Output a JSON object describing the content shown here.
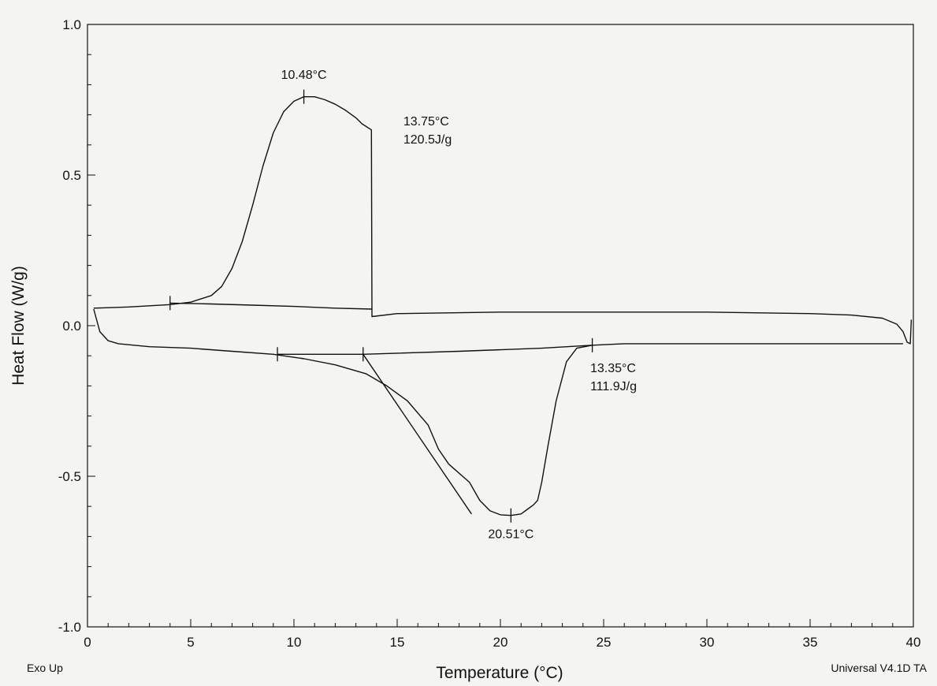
{
  "chart_data": {
    "type": "line",
    "xlabel": "Temperature (°C)",
    "ylabel": "Heat Flow (W/g)",
    "xlim": [
      0,
      40
    ],
    "ylim": [
      -1.0,
      1.0
    ],
    "x_ticks": [
      0,
      5,
      10,
      15,
      20,
      25,
      30,
      35,
      40
    ],
    "x_tick_labels": [
      "0",
      "5",
      "10",
      "15",
      "20",
      "25",
      "30",
      "35",
      "40"
    ],
    "y_ticks": [
      -1.0,
      -0.5,
      0.0,
      0.5,
      1.0
    ],
    "y_tick_labels": [
      "-1.0",
      "-0.5",
      "0.0",
      "0.5",
      "1.0"
    ],
    "x_minor_step": 1,
    "y_minor_step": 0.1,
    "grid": false,
    "series": [
      {
        "points": [
          [
            0.3,
            0.058
          ],
          [
            2,
            0.062
          ],
          [
            4,
            0.07
          ],
          [
            5,
            0.078
          ],
          [
            6,
            0.1
          ],
          [
            6.5,
            0.13
          ],
          [
            7,
            0.19
          ],
          [
            7.5,
            0.28
          ],
          [
            8,
            0.4
          ],
          [
            8.5,
            0.53
          ],
          [
            9,
            0.64
          ],
          [
            9.5,
            0.71
          ],
          [
            10,
            0.745
          ],
          [
            10.48,
            0.76
          ],
          [
            11,
            0.76
          ],
          [
            11.5,
            0.75
          ],
          [
            12,
            0.735
          ],
          [
            12.5,
            0.715
          ],
          [
            13,
            0.69
          ],
          [
            13.3,
            0.67
          ],
          [
            13.75,
            0.65
          ],
          [
            13.78,
            0.03
          ],
          [
            15,
            0.04
          ],
          [
            20,
            0.045
          ],
          [
            25,
            0.045
          ],
          [
            30,
            0.045
          ],
          [
            35,
            0.04
          ],
          [
            37,
            0.035
          ],
          [
            38.5,
            0.025
          ],
          [
            39.2,
            0.005
          ],
          [
            39.5,
            -0.02
          ],
          [
            39.7,
            -0.055
          ],
          [
            39.85,
            -0.06
          ],
          [
            39.9,
            0.02
          ]
        ]
      },
      {
        "points": [
          [
            0.3,
            0.055
          ],
          [
            0.6,
            -0.02
          ],
          [
            1,
            -0.05
          ],
          [
            1.5,
            -0.06
          ],
          [
            3,
            -0.07
          ],
          [
            5,
            -0.075
          ],
          [
            7,
            -0.085
          ],
          [
            9,
            -0.095
          ],
          [
            10.5,
            -0.11
          ],
          [
            12,
            -0.13
          ],
          [
            13.5,
            -0.16
          ],
          [
            14.5,
            -0.2
          ],
          [
            15.5,
            -0.25
          ],
          [
            16.5,
            -0.33
          ],
          [
            17,
            -0.41
          ],
          [
            17.5,
            -0.46
          ],
          [
            18.5,
            -0.52
          ],
          [
            19,
            -0.58
          ],
          [
            19.5,
            -0.615
          ],
          [
            20,
            -0.628
          ],
          [
            20.51,
            -0.63
          ],
          [
            21,
            -0.625
          ],
          [
            21.3,
            -0.61
          ],
          [
            21.6,
            -0.595
          ],
          [
            21.8,
            -0.58
          ],
          [
            22,
            -0.52
          ],
          [
            22.3,
            -0.4
          ],
          [
            22.7,
            -0.25
          ],
          [
            23.2,
            -0.12
          ],
          [
            23.7,
            -0.075
          ],
          [
            24.45,
            -0.065
          ],
          [
            26,
            -0.06
          ],
          [
            30,
            -0.06
          ],
          [
            35,
            -0.06
          ],
          [
            39.5,
            -0.06
          ]
        ]
      },
      {
        "points": [
          [
            4,
            0.075
          ],
          [
            6,
            0.072
          ],
          [
            8,
            0.068
          ],
          [
            10,
            0.064
          ],
          [
            12,
            0.058
          ],
          [
            13.78,
            0.055
          ]
        ]
      },
      {
        "points": [
          [
            9.2,
            -0.095
          ],
          [
            13.35,
            -0.095
          ],
          [
            18,
            -0.085
          ],
          [
            22,
            -0.075
          ],
          [
            24.45,
            -0.065
          ]
        ]
      },
      {
        "points": [
          [
            13.35,
            -0.095
          ],
          [
            18.6,
            -0.625
          ]
        ]
      }
    ],
    "markers": [
      {
        "x": 4,
        "y": 0.075
      },
      {
        "x": 10.48,
        "y": 0.76
      },
      {
        "x": 9.2,
        "y": -0.095
      },
      {
        "x": 13.35,
        "y": -0.095
      },
      {
        "x": 24.45,
        "y": -0.065
      },
      {
        "x": 20.51,
        "y": -0.63
      }
    ],
    "annotations": [
      {
        "text": "10.48°C",
        "x": 10.48,
        "y": 0.82
      },
      {
        "text": "13.75°C",
        "x": 15.3,
        "y": 0.665
      },
      {
        "text": "120.5J/g",
        "x": 15.3,
        "y": 0.605
      },
      {
        "text": "13.35°C",
        "x": 24.35,
        "y": -0.155
      },
      {
        "text": "111.9J/g",
        "x": 24.35,
        "y": -0.215
      },
      {
        "text": "20.51°C",
        "x": 20.51,
        "y": -0.705
      }
    ],
    "footer_left": "Exo Up",
    "footer_right": "Universal V4.1D TA"
  }
}
